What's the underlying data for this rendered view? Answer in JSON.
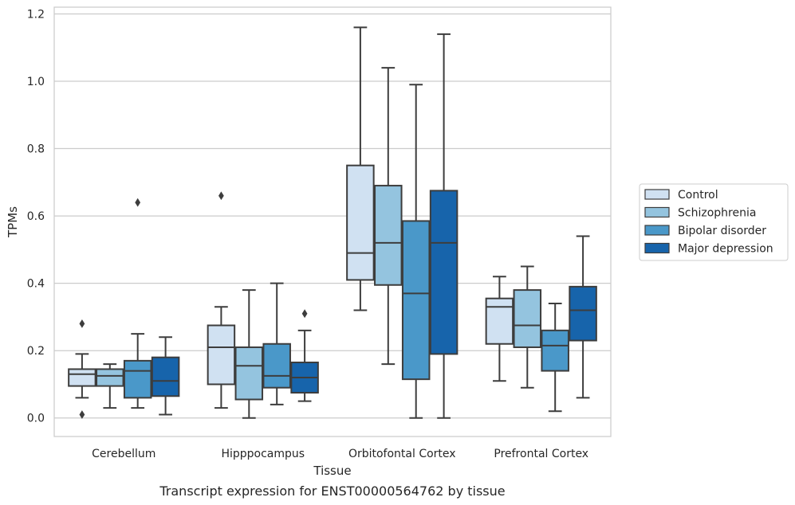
{
  "chart_data": {
    "type": "box",
    "title": "",
    "caption": "Transcript expression for ENST00000564762 by tissue",
    "xlabel": "Tissue",
    "ylabel": "TPMs",
    "ylim": [
      -0.055,
      1.22
    ],
    "yticks": [
      0.0,
      0.2,
      0.4,
      0.6,
      0.8,
      1.0,
      1.2
    ],
    "ytick_labels": [
      "0.0",
      "0.2",
      "0.4",
      "0.6",
      "0.8",
      "1.0",
      "1.2"
    ],
    "grid": "horizontal",
    "legend_position": "right",
    "categories": [
      "Cerebellum",
      "Hipppocampus",
      "Orbitofontal Cortex",
      "Prefrontal Cortex"
    ],
    "series": [
      {
        "name": "Control",
        "color": "#d0e1f2",
        "boxes": [
          {
            "whislo": 0.06,
            "q1": 0.095,
            "med": 0.13,
            "q3": 0.145,
            "whishi": 0.19,
            "fliers": [
              0.28,
              0.01
            ]
          },
          {
            "whislo": 0.03,
            "q1": 0.1,
            "med": 0.21,
            "q3": 0.275,
            "whishi": 0.33,
            "fliers": [
              0.66
            ]
          },
          {
            "whislo": 0.32,
            "q1": 0.41,
            "med": 0.49,
            "q3": 0.75,
            "whishi": 1.16,
            "fliers": []
          },
          {
            "whislo": 0.11,
            "q1": 0.22,
            "med": 0.33,
            "q3": 0.355,
            "whishi": 0.42,
            "fliers": []
          }
        ]
      },
      {
        "name": "Schizophrenia",
        "color": "#94c4df",
        "boxes": [
          {
            "whislo": 0.03,
            "q1": 0.095,
            "med": 0.125,
            "q3": 0.145,
            "whishi": 0.16,
            "fliers": []
          },
          {
            "whislo": 0.0,
            "q1": 0.055,
            "med": 0.155,
            "q3": 0.21,
            "whishi": 0.38,
            "fliers": []
          },
          {
            "whislo": 0.16,
            "q1": 0.395,
            "med": 0.52,
            "q3": 0.69,
            "whishi": 1.04,
            "fliers": []
          },
          {
            "whislo": 0.09,
            "q1": 0.21,
            "med": 0.275,
            "q3": 0.38,
            "whishi": 0.45,
            "fliers": []
          }
        ]
      },
      {
        "name": "Bipolar disorder",
        "color": "#4a98c9",
        "boxes": [
          {
            "whislo": 0.03,
            "q1": 0.06,
            "med": 0.14,
            "q3": 0.17,
            "whishi": 0.25,
            "fliers": [
              0.64
            ]
          },
          {
            "whislo": 0.04,
            "q1": 0.09,
            "med": 0.125,
            "q3": 0.22,
            "whishi": 0.4,
            "fliers": []
          },
          {
            "whislo": 0.0,
            "q1": 0.115,
            "med": 0.37,
            "q3": 0.585,
            "whishi": 0.99,
            "fliers": []
          },
          {
            "whislo": 0.02,
            "q1": 0.14,
            "med": 0.215,
            "q3": 0.26,
            "whishi": 0.34,
            "fliers": []
          }
        ]
      },
      {
        "name": "Major depression",
        "color": "#1764ab",
        "boxes": [
          {
            "whislo": 0.01,
            "q1": 0.065,
            "med": 0.11,
            "q3": 0.18,
            "whishi": 0.24,
            "fliers": []
          },
          {
            "whislo": 0.05,
            "q1": 0.075,
            "med": 0.12,
            "q3": 0.165,
            "whishi": 0.26,
            "fliers": [
              0.31
            ]
          },
          {
            "whislo": 0.0,
            "q1": 0.19,
            "med": 0.52,
            "q3": 0.675,
            "whishi": 1.14,
            "fliers": []
          },
          {
            "whislo": 0.06,
            "q1": 0.23,
            "med": 0.32,
            "q3": 0.39,
            "whishi": 0.54,
            "fliers": []
          }
        ]
      }
    ]
  }
}
